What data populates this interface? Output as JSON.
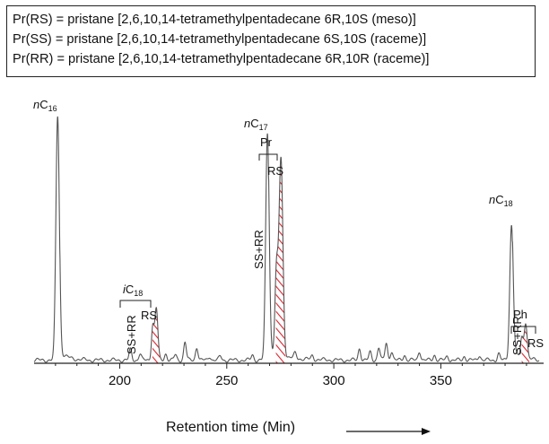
{
  "legend": {
    "lines": [
      "Pr(RS) = pristane [2,6,10,14-tetramethylpentadecane 6R,10S (meso)]",
      "Pr(SS) = pristane [2,6,10,14-tetramethylpentadecane 6S,10S (raceme)]",
      "Pr(RR) = pristane [2,6,10,14-tetramethylpentadecane 6R,10R (raceme)]"
    ]
  },
  "colors": {
    "trace": "#555555",
    "hatch": "#d9232d",
    "axis": "#222222"
  },
  "chart_data": {
    "type": "line",
    "xlabel": "Retention time (Min)",
    "xlim": [
      160,
      398
    ],
    "ylim": [
      0,
      100
    ],
    "x_ticks": [
      200,
      250,
      300,
      350
    ],
    "grid": false,
    "annotations": [
      {
        "prefix": "n",
        "base": "C",
        "sub": "16",
        "x": 171
      },
      {
        "prefix": "n",
        "base": "C",
        "sub": "17",
        "x": 269
      },
      {
        "prefix": "n",
        "base": "C",
        "sub": "18",
        "x": 383
      },
      {
        "prefix": "i",
        "base": "C",
        "sub": "18",
        "x": 216
      },
      {
        "text": "Pr",
        "x": 274
      },
      {
        "text": "Ph",
        "x": 389
      },
      {
        "text": "RS",
        "x": 217
      },
      {
        "text": "RS",
        "x": 275
      },
      {
        "text": "RS",
        "x": 394
      },
      {
        "text": "SS+RR",
        "x": 213
      },
      {
        "text": "SS+RR",
        "x": 271
      },
      {
        "text": "SS+RR",
        "x": 385
      }
    ],
    "peaks": [
      {
        "name": "nC16",
        "x": 171,
        "height": 94,
        "width": 0.8
      },
      {
        "name": "nC17",
        "x": 269,
        "height": 87.5,
        "width": 0.8
      },
      {
        "name": "Pr SS+RR",
        "x": 273.2,
        "height": 31,
        "width": 0.7
      },
      {
        "name": "Pr RS",
        "x": 275.3,
        "height": 76,
        "width": 0.9
      },
      {
        "name": "iC18 SS+RR",
        "x": 215.4,
        "height": 13,
        "width": 0.6
      },
      {
        "name": "iC18 RS",
        "x": 217.1,
        "height": 20,
        "width": 0.7
      },
      {
        "name": "nC18",
        "x": 383,
        "height": 52,
        "width": 0.8
      },
      {
        "name": "Ph SS+RR",
        "x": 387.8,
        "height": 7.5,
        "width": 0.6
      },
      {
        "name": "Ph RS",
        "x": 389.6,
        "height": 14,
        "width": 0.7
      },
      {
        "name": "minor",
        "x": 205,
        "height": 4,
        "width": 0.6
      },
      {
        "name": "minor",
        "x": 209.5,
        "height": 2.5,
        "width": 0.6
      },
      {
        "name": "minor",
        "x": 221.5,
        "height": 2.5,
        "width": 0.6
      },
      {
        "name": "minor",
        "x": 226,
        "height": 2,
        "width": 0.6
      },
      {
        "name": "minor",
        "x": 230.5,
        "height": 7,
        "width": 0.6
      },
      {
        "name": "minor",
        "x": 236,
        "height": 5,
        "width": 0.6
      },
      {
        "name": "minor",
        "x": 242,
        "height": 1.5,
        "width": 0.6
      },
      {
        "name": "minor",
        "x": 247,
        "height": 1.5,
        "width": 0.6
      },
      {
        "name": "minor",
        "x": 262,
        "height": 2,
        "width": 0.6
      },
      {
        "name": "minor",
        "x": 282,
        "height": 2,
        "width": 0.6
      },
      {
        "name": "minor",
        "x": 290,
        "height": 1.5,
        "width": 0.6
      },
      {
        "name": "minor",
        "x": 312,
        "height": 4.5,
        "width": 0.6
      },
      {
        "name": "minor",
        "x": 317,
        "height": 3,
        "width": 0.6
      },
      {
        "name": "minor",
        "x": 321,
        "height": 5,
        "width": 0.6
      },
      {
        "name": "minor",
        "x": 324.5,
        "height": 6.5,
        "width": 0.6
      },
      {
        "name": "minor",
        "x": 327,
        "height": 3.5,
        "width": 0.6
      },
      {
        "name": "minor",
        "x": 333,
        "height": 2,
        "width": 0.6
      },
      {
        "name": "minor",
        "x": 340,
        "height": 3.5,
        "width": 0.6
      },
      {
        "name": "minor",
        "x": 347,
        "height": 2,
        "width": 0.6
      },
      {
        "name": "minor",
        "x": 353,
        "height": 1.5,
        "width": 0.6
      },
      {
        "name": "minor",
        "x": 361,
        "height": 1.5,
        "width": 0.6
      },
      {
        "name": "minor",
        "x": 368,
        "height": 2,
        "width": 0.6
      },
      {
        "name": "minor",
        "x": 377,
        "height": 2.5,
        "width": 0.6
      }
    ],
    "hatched_peaks": [
      "iC18 RS",
      "Pr RS",
      "Ph RS"
    ]
  }
}
